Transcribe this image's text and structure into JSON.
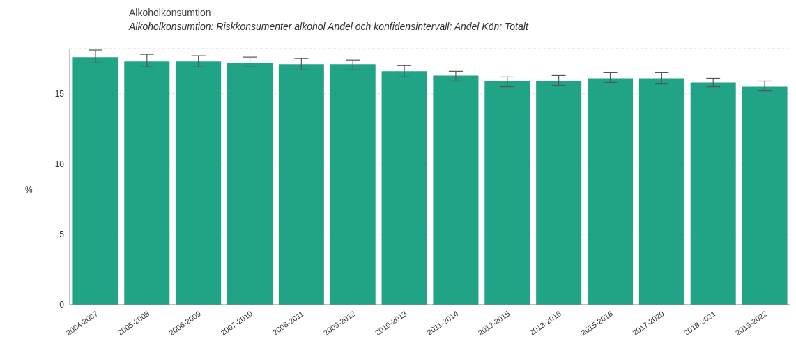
{
  "chart_data": {
    "type": "bar",
    "title": "Alkoholkonsumtion",
    "subtitle": "Alkoholkonsumtion: Riskkonsumenter alkohol Andel och konfidensintervall: Andel Kön: Totalt",
    "ylabel": "%",
    "categories": [
      "2004-2007",
      "2005-2008",
      "2006-2009",
      "2007-2010",
      "2008-2011",
      "2009-2012",
      "2010-2013",
      "2011-2014",
      "2012-2015",
      "2013-2016",
      "2015-2018",
      "2017-2020",
      "2018-2021",
      "2019-2022"
    ],
    "values": [
      17.6,
      17.3,
      17.3,
      17.2,
      17.1,
      17.1,
      16.6,
      16.3,
      15.9,
      15.9,
      16.1,
      16.1,
      15.8,
      15.5
    ],
    "errors": [
      [
        17.2,
        18.1
      ],
      [
        16.9,
        17.8
      ],
      [
        16.9,
        17.7
      ],
      [
        16.9,
        17.6
      ],
      [
        16.7,
        17.5
      ],
      [
        16.7,
        17.4
      ],
      [
        16.2,
        17.0
      ],
      [
        15.9,
        16.6
      ],
      [
        15.5,
        16.2
      ],
      [
        15.6,
        16.3
      ],
      [
        15.8,
        16.5
      ],
      [
        15.7,
        16.5
      ],
      [
        15.5,
        16.1
      ],
      [
        15.2,
        15.9
      ]
    ],
    "color": "#21a385",
    "ylim": [
      0,
      18.2
    ],
    "yticks": [
      0,
      5,
      10,
      15
    ],
    "grid": "y",
    "legend": false
  }
}
